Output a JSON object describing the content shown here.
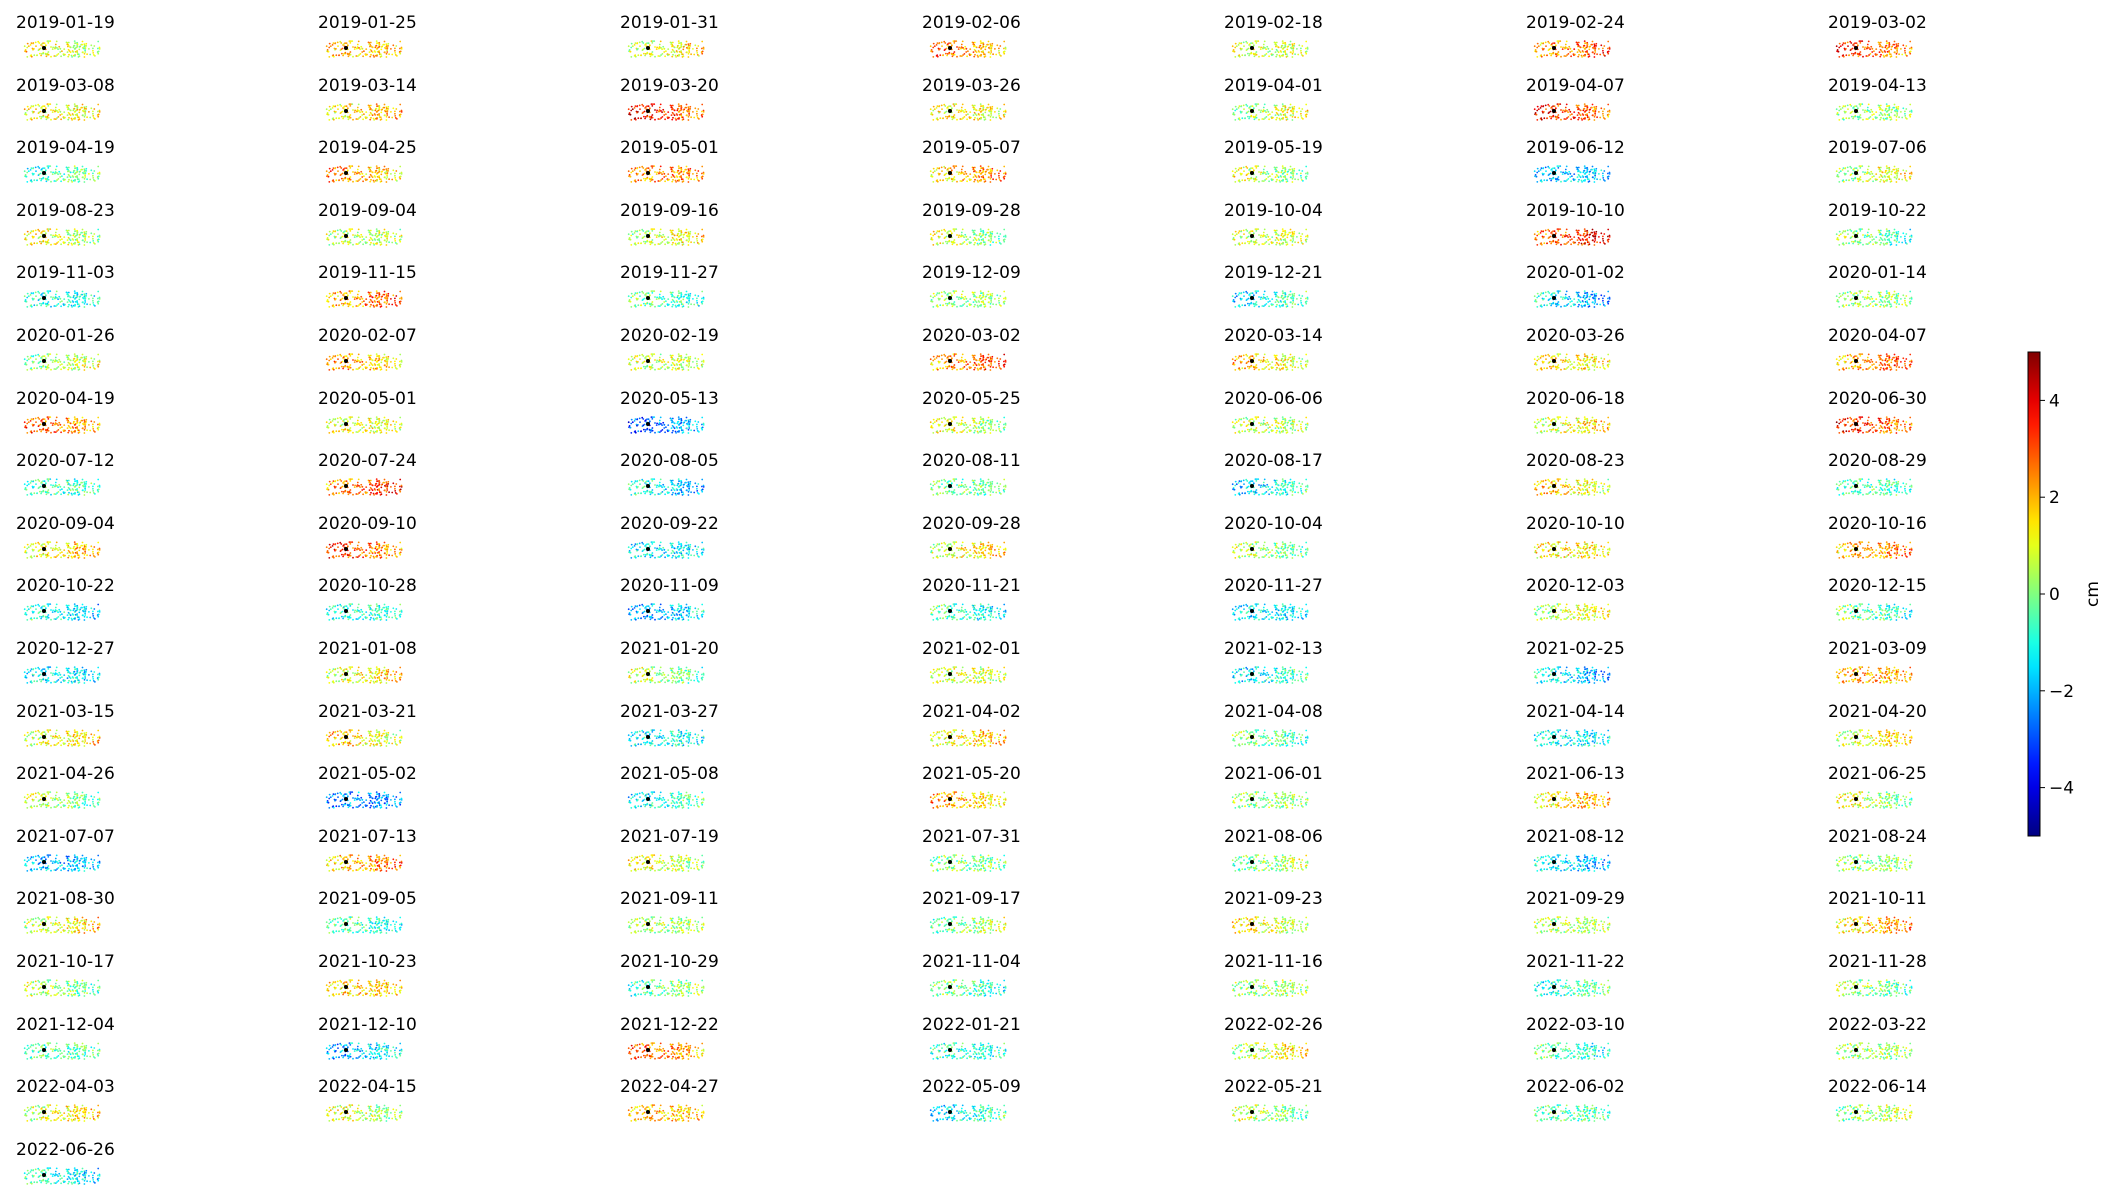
{
  "chart_data": {
    "type": "scatter",
    "layout": "small-multiples",
    "panel_titles": [
      "2019-01-19",
      "2019-01-25",
      "2019-01-31",
      "2019-02-06",
      "2019-02-18",
      "2019-02-24",
      "2019-03-02",
      "2019-03-08",
      "2019-03-14",
      "2019-03-20",
      "2019-03-26",
      "2019-04-01",
      "2019-04-07",
      "2019-04-13",
      "2019-04-19",
      "2019-04-25",
      "2019-05-01",
      "2019-05-07",
      "2019-05-19",
      "2019-06-12",
      "2019-07-06",
      "2019-08-23",
      "2019-09-04",
      "2019-09-16",
      "2019-09-28",
      "2019-10-04",
      "2019-10-10",
      "2019-10-22",
      "2019-11-03",
      "2019-11-15",
      "2019-11-27",
      "2019-12-09",
      "2019-12-21",
      "2020-01-02",
      "2020-01-14",
      "2020-01-26",
      "2020-02-07",
      "2020-02-19",
      "2020-03-02",
      "2020-03-14",
      "2020-03-26",
      "2020-04-07",
      "2020-04-19",
      "2020-05-01",
      "2020-05-13",
      "2020-05-25",
      "2020-06-06",
      "2020-06-18",
      "2020-06-30",
      "2020-07-12",
      "2020-07-24",
      "2020-08-05",
      "2020-08-11",
      "2020-08-17",
      "2020-08-23",
      "2020-08-29",
      "2020-09-04",
      "2020-09-10",
      "2020-09-22",
      "2020-09-28",
      "2020-10-04",
      "2020-10-10",
      "2020-10-16",
      "2020-10-22",
      "2020-10-28",
      "2020-11-09",
      "2020-11-21",
      "2020-11-27",
      "2020-12-03",
      "2020-12-15",
      "2020-12-27",
      "2021-01-08",
      "2021-01-20",
      "2021-02-01",
      "2021-02-13",
      "2021-02-25",
      "2021-03-09",
      "2021-03-15",
      "2021-03-21",
      "2021-03-27",
      "2021-04-02",
      "2021-04-08",
      "2021-04-14",
      "2021-04-20",
      "2021-04-26",
      "2021-05-02",
      "2021-05-08",
      "2021-05-20",
      "2021-06-01",
      "2021-06-13",
      "2021-06-25",
      "2021-07-07",
      "2021-07-13",
      "2021-07-19",
      "2021-07-31",
      "2021-08-06",
      "2021-08-12",
      "2021-08-24",
      "2021-08-30",
      "2021-09-05",
      "2021-09-11",
      "2021-09-17",
      "2021-09-23",
      "2021-09-29",
      "2021-10-11",
      "2021-10-17",
      "2021-10-23",
      "2021-10-29",
      "2021-11-04",
      "2021-11-16",
      "2021-11-22",
      "2021-11-28",
      "2021-12-04",
      "2021-12-10",
      "2021-12-22",
      "2022-01-21",
      "2022-02-26",
      "2022-03-10",
      "2022-03-22",
      "2022-04-03",
      "2022-04-15",
      "2022-04-27",
      "2022-05-09",
      "2022-05-21",
      "2022-06-02",
      "2022-06-14",
      "2022-06-26"
    ],
    "panel_mean_cm": [
      1.0,
      1.8,
      1.2,
      2.2,
      0.8,
      2.6,
      2.8,
      1.2,
      1.6,
      3.2,
      1.2,
      0.6,
      3.0,
      0.2,
      -0.4,
      2.0,
      2.4,
      2.0,
      0.4,
      -1.8,
      0.8,
      0.8,
      0.6,
      1.0,
      0.4,
      0.8,
      3.2,
      -0.2,
      -1.0,
      2.4,
      -0.4,
      0.2,
      -1.0,
      -1.6,
      0.2,
      0.4,
      2.0,
      0.8,
      2.6,
      1.4,
      1.4,
      2.4,
      2.4,
      1.0,
      -2.4,
      0.6,
      0.6,
      1.2,
      3.0,
      -0.6,
      2.8,
      -1.4,
      -0.2,
      -1.2,
      1.4,
      -0.6,
      1.6,
      2.8,
      -1.4,
      1.2,
      0.2,
      1.4,
      2.2,
      -1.2,
      -0.8,
      -1.8,
      -0.8,
      -1.4,
      0.8,
      -0.4,
      -1.4,
      1.2,
      0.2,
      0.8,
      -1.0,
      -1.6,
      2.0,
      1.2,
      1.4,
      -1.2,
      1.4,
      -0.2,
      -1.2,
      1.2,
      0.2,
      -2.4,
      -0.8,
      1.8,
      0.2,
      1.6,
      0.6,
      -1.8,
      2.2,
      0.8,
      0.0,
      0.2,
      -1.6,
      0.2,
      1.2,
      -0.6,
      0.4,
      0.2,
      1.0,
      0.4,
      1.8,
      0.2,
      1.6,
      -0.2,
      -0.4,
      0.4,
      -0.6,
      0.0,
      -0.4,
      -1.6,
      2.4,
      -0.8,
      1.0,
      -0.6,
      0.4,
      1.2,
      0.6,
      1.8,
      -1.0,
      0.2,
      -0.4,
      0.4,
      -1.0
    ],
    "colorbar": {
      "colormap": "jet",
      "vmin": -5,
      "vmax": 5,
      "ticks": [
        4,
        2,
        0,
        -2,
        -4
      ],
      "tick_labels": [
        "4",
        "2",
        "0",
        "−2",
        "−4"
      ],
      "label": "cm"
    },
    "reference_marker_color": "#000000",
    "background_color": "#ffffff"
  }
}
